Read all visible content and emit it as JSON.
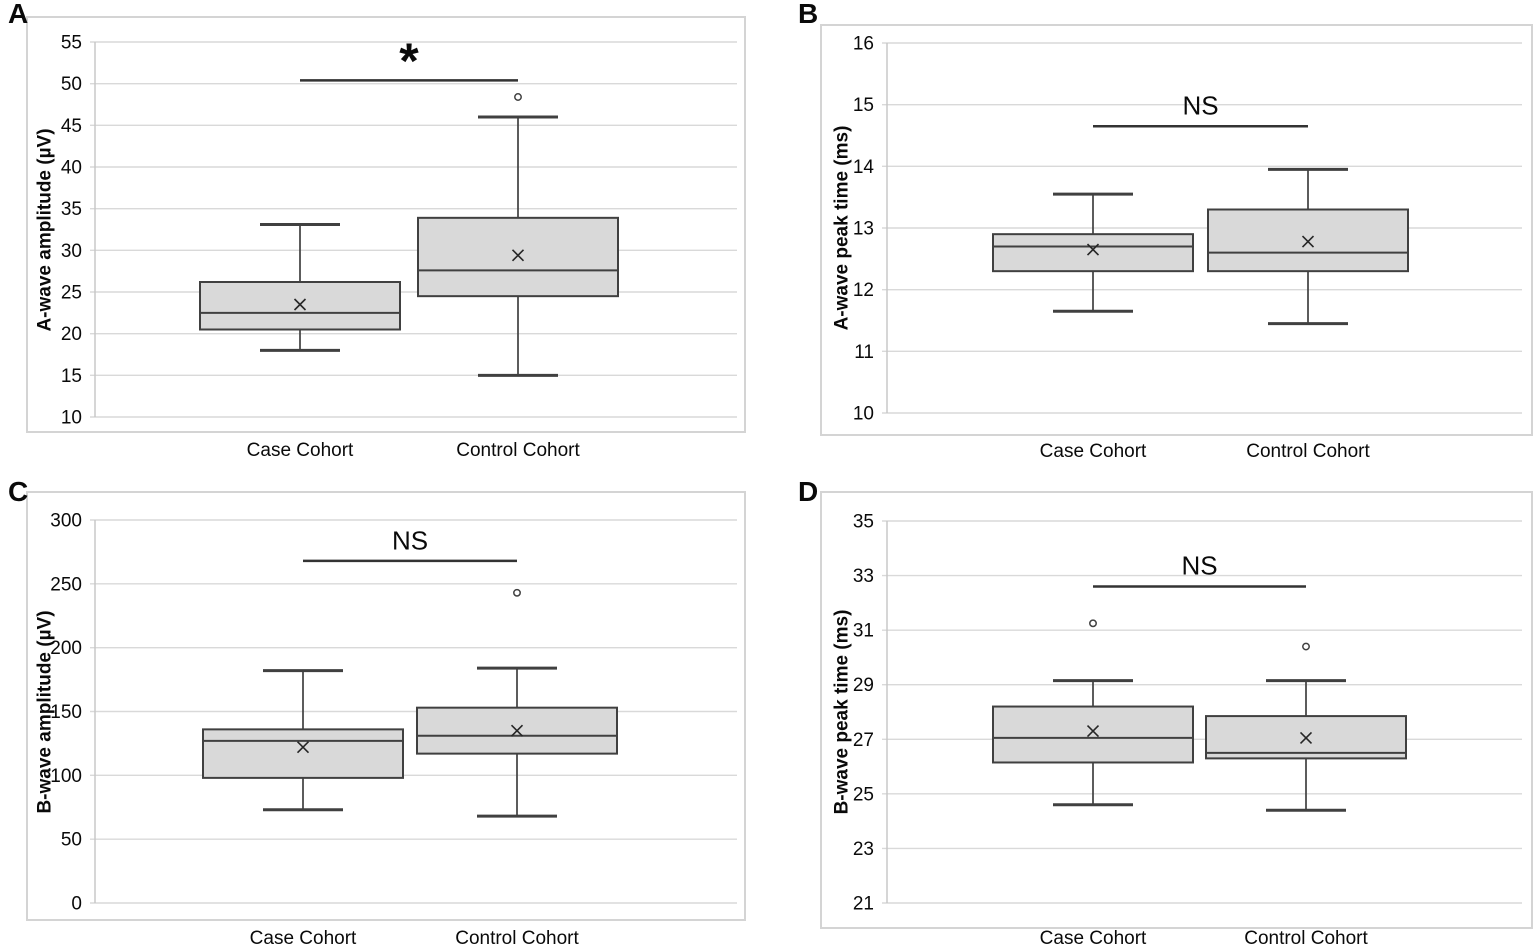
{
  "colors": {
    "box_fill": "#d9d9d9",
    "box_stroke": "#404040",
    "whisker": "#404040",
    "median": "#404040",
    "mean_marker": "#262626",
    "outlier_stroke": "#404040",
    "grid": "#d9d9d9",
    "axis_line": "#c8c8c8",
    "frame": "#d4d4d4",
    "sig_bar": "#333333",
    "text": "#0a0a0a",
    "background": "#ffffff"
  },
  "chart_data": [
    {
      "type": "box",
      "letter": "A",
      "ylabel": "A-wave amplitude (µV)",
      "ylim": [
        10,
        55
      ],
      "yticks": [
        55,
        50,
        45,
        40,
        35,
        30,
        25,
        20,
        15,
        10
      ],
      "categories": [
        "Case Cohort",
        "Control Cohort"
      ],
      "significance": {
        "label": "*",
        "bar_y": 50.4
      },
      "series": [
        {
          "name": "Case Cohort",
          "whisker_low": 18.0,
          "q1": 20.5,
          "median": 22.5,
          "mean": 23.5,
          "q3": 26.2,
          "whisker_high": 33.1,
          "outliers": []
        },
        {
          "name": "Control Cohort",
          "whisker_low": 15.0,
          "q1": 24.5,
          "median": 27.6,
          "mean": 29.4,
          "q3": 33.9,
          "whisker_high": 46.0,
          "outliers": [
            48.4
          ]
        }
      ]
    },
    {
      "type": "box",
      "letter": "B",
      "ylabel": "A-wave peak time (ms)",
      "ylim": [
        10,
        16
      ],
      "yticks": [
        16,
        15,
        14,
        13,
        12,
        11,
        10
      ],
      "categories": [
        "Case Cohort",
        "Control Cohort"
      ],
      "significance": {
        "label": "NS",
        "bar_y": 14.65
      },
      "series": [
        {
          "name": "Case Cohort",
          "whisker_low": 11.65,
          "q1": 12.3,
          "median": 12.7,
          "mean": 12.65,
          "q3": 12.9,
          "whisker_high": 13.55,
          "outliers": []
        },
        {
          "name": "Control Cohort",
          "whisker_low": 11.45,
          "q1": 12.3,
          "median": 12.6,
          "mean": 12.78,
          "q3": 13.3,
          "whisker_high": 13.95,
          "outliers": []
        }
      ]
    },
    {
      "type": "box",
      "letter": "C",
      "ylabel": "B-wave amplitude (µV)",
      "ylim": [
        0,
        300
      ],
      "yticks": [
        300,
        250,
        200,
        150,
        100,
        50,
        0
      ],
      "categories": [
        "Case Cohort",
        "Control Cohort"
      ],
      "significance": {
        "label": "NS",
        "bar_y": 268
      },
      "series": [
        {
          "name": "Case Cohort",
          "whisker_low": 73,
          "q1": 98,
          "median": 127,
          "mean": 122,
          "q3": 136,
          "whisker_high": 182,
          "outliers": []
        },
        {
          "name": "Control Cohort",
          "whisker_low": 68,
          "q1": 117,
          "median": 131,
          "mean": 135,
          "q3": 153,
          "whisker_high": 184,
          "outliers": [
            243
          ]
        }
      ]
    },
    {
      "type": "box",
      "letter": "D",
      "ylabel": "B-wave peak time (ms)",
      "ylim": [
        21,
        35
      ],
      "yticks": [
        35,
        33,
        31,
        29,
        27,
        25,
        23,
        21
      ],
      "categories": [
        "Case Cohort",
        "Control Cohort"
      ],
      "significance": {
        "label": "NS",
        "bar_y": 32.6
      },
      "series": [
        {
          "name": "Case Cohort",
          "whisker_low": 24.6,
          "q1": 26.15,
          "median": 27.05,
          "mean": 27.3,
          "q3": 28.2,
          "whisker_high": 29.15,
          "outliers": [
            31.25
          ]
        },
        {
          "name": "Control Cohort",
          "whisker_low": 24.4,
          "q1": 26.3,
          "median": 26.5,
          "mean": 27.05,
          "q3": 27.85,
          "whisker_high": 29.15,
          "outliers": [
            30.4
          ]
        }
      ]
    }
  ]
}
